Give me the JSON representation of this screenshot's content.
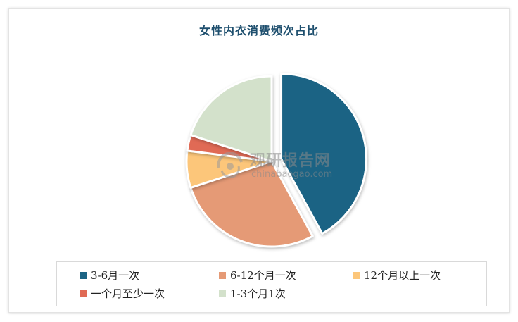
{
  "chart_data": {
    "type": "pie",
    "title": "女性内衣消费频次占比",
    "slices": [
      {
        "label": "3-6月一次",
        "value": 42,
        "color": "#1b6384",
        "exploded": true
      },
      {
        "label": "6-12个月一次",
        "value": 28,
        "color": "#e59a76"
      },
      {
        "label": "12个月以上一次",
        "value": 7,
        "color": "#fcc67a"
      },
      {
        "label": "一个月至少一次",
        "value": 3,
        "color": "#e06a55"
      },
      {
        "label": "1-3个月1次",
        "value": 20,
        "color": "#d3e1cb"
      }
    ],
    "legend_position": "bottom"
  },
  "watermark": {
    "name_cn": "观研报告网",
    "domain": "chinabaogao.com"
  }
}
